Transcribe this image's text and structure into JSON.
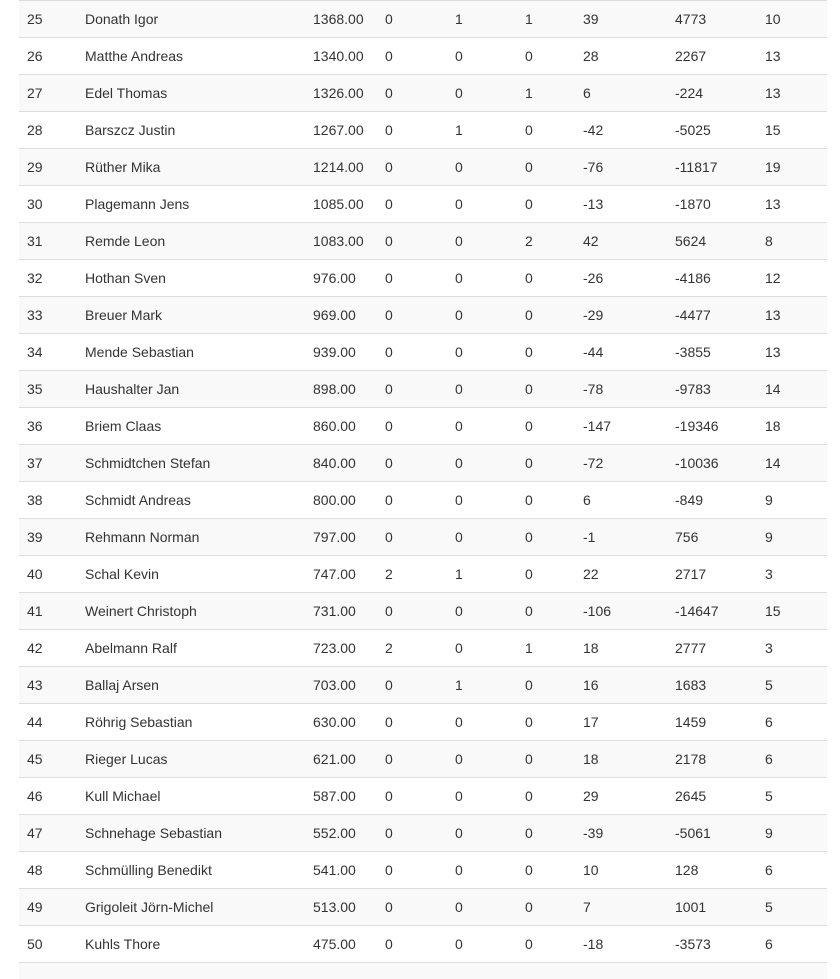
{
  "page": {
    "background_color": "#ffffff",
    "text_color": "#333333"
  },
  "table": {
    "stripe_color": "#f9f9f9",
    "border_color": "#dddddd",
    "rows": [
      {
        "rank": "25",
        "name": "Donath Igor",
        "points": "1368.00",
        "stats": [
          "0",
          "1",
          "1",
          "39",
          "4773",
          "10"
        ]
      },
      {
        "rank": "26",
        "name": "Matthe Andreas",
        "points": "1340.00",
        "stats": [
          "0",
          "0",
          "0",
          "28",
          "2267",
          "13"
        ]
      },
      {
        "rank": "27",
        "name": "Edel Thomas",
        "points": "1326.00",
        "stats": [
          "0",
          "0",
          "1",
          "6",
          "-224",
          "13"
        ]
      },
      {
        "rank": "28",
        "name": "Barszcz Justin",
        "points": "1267.00",
        "stats": [
          "0",
          "1",
          "0",
          "-42",
          "-5025",
          "15"
        ]
      },
      {
        "rank": "29",
        "name": "Rüther Mika",
        "points": "1214.00",
        "stats": [
          "0",
          "0",
          "0",
          "-76",
          "-11817",
          "19"
        ]
      },
      {
        "rank": "30",
        "name": "Plagemann Jens",
        "points": "1085.00",
        "stats": [
          "0",
          "0",
          "0",
          "-13",
          "-1870",
          "13"
        ]
      },
      {
        "rank": "31",
        "name": "Remde Leon",
        "points": "1083.00",
        "stats": [
          "0",
          "0",
          "2",
          "42",
          "5624",
          "8"
        ]
      },
      {
        "rank": "32",
        "name": "Hothan Sven",
        "points": "976.00",
        "stats": [
          "0",
          "0",
          "0",
          "-26",
          "-4186",
          "12"
        ]
      },
      {
        "rank": "33",
        "name": "Breuer Mark",
        "points": "969.00",
        "stats": [
          "0",
          "0",
          "0",
          "-29",
          "-4477",
          "13"
        ]
      },
      {
        "rank": "34",
        "name": "Mende Sebastian",
        "points": "939.00",
        "stats": [
          "0",
          "0",
          "0",
          "-44",
          "-3855",
          "13"
        ]
      },
      {
        "rank": "35",
        "name": "Haushalter Jan",
        "points": "898.00",
        "stats": [
          "0",
          "0",
          "0",
          "-78",
          "-9783",
          "14"
        ]
      },
      {
        "rank": "36",
        "name": "Briem Claas",
        "points": "860.00",
        "stats": [
          "0",
          "0",
          "0",
          "-147",
          "-19346",
          "18"
        ]
      },
      {
        "rank": "37",
        "name": "Schmidtchen Stefan",
        "points": "840.00",
        "stats": [
          "0",
          "0",
          "0",
          "-72",
          "-10036",
          "14"
        ]
      },
      {
        "rank": "38",
        "name": "Schmidt Andreas",
        "points": "800.00",
        "stats": [
          "0",
          "0",
          "0",
          "6",
          "-849",
          "9"
        ]
      },
      {
        "rank": "39",
        "name": "Rehmann Norman",
        "points": "797.00",
        "stats": [
          "0",
          "0",
          "0",
          "-1",
          "756",
          "9"
        ]
      },
      {
        "rank": "40",
        "name": "Schal Kevin",
        "points": "747.00",
        "stats": [
          "2",
          "1",
          "0",
          "22",
          "2717",
          "3"
        ]
      },
      {
        "rank": "41",
        "name": "Weinert Christoph",
        "points": "731.00",
        "stats": [
          "0",
          "0",
          "0",
          "-106",
          "-14647",
          "15"
        ]
      },
      {
        "rank": "42",
        "name": "Abelmann Ralf",
        "points": "723.00",
        "stats": [
          "2",
          "0",
          "1",
          "18",
          "2777",
          "3"
        ]
      },
      {
        "rank": "43",
        "name": "Ballaj Arsen",
        "points": "703.00",
        "stats": [
          "0",
          "1",
          "0",
          "16",
          "1683",
          "5"
        ]
      },
      {
        "rank": "44",
        "name": "Röhrig Sebastian",
        "points": "630.00",
        "stats": [
          "0",
          "0",
          "0",
          "17",
          "1459",
          "6"
        ]
      },
      {
        "rank": "45",
        "name": "Rieger Lucas",
        "points": "621.00",
        "stats": [
          "0",
          "0",
          "0",
          "18",
          "2178",
          "6"
        ]
      },
      {
        "rank": "46",
        "name": "Kull Michael",
        "points": "587.00",
        "stats": [
          "0",
          "0",
          "0",
          "29",
          "2645",
          "5"
        ]
      },
      {
        "rank": "47",
        "name": "Schnehage Sebastian",
        "points": "552.00",
        "stats": [
          "0",
          "0",
          "0",
          "-39",
          "-5061",
          "9"
        ]
      },
      {
        "rank": "48",
        "name": "Schmülling Benedikt",
        "points": "541.00",
        "stats": [
          "0",
          "0",
          "0",
          "10",
          "128",
          "6"
        ]
      },
      {
        "rank": "49",
        "name": "Grigoleit Jörn-Michel",
        "points": "513.00",
        "stats": [
          "0",
          "0",
          "0",
          "7",
          "1001",
          "5"
        ]
      },
      {
        "rank": "50",
        "name": "Kuhls Thore",
        "points": "475.00",
        "stats": [
          "0",
          "0",
          "0",
          "-18",
          "-3573",
          "6"
        ]
      }
    ]
  }
}
